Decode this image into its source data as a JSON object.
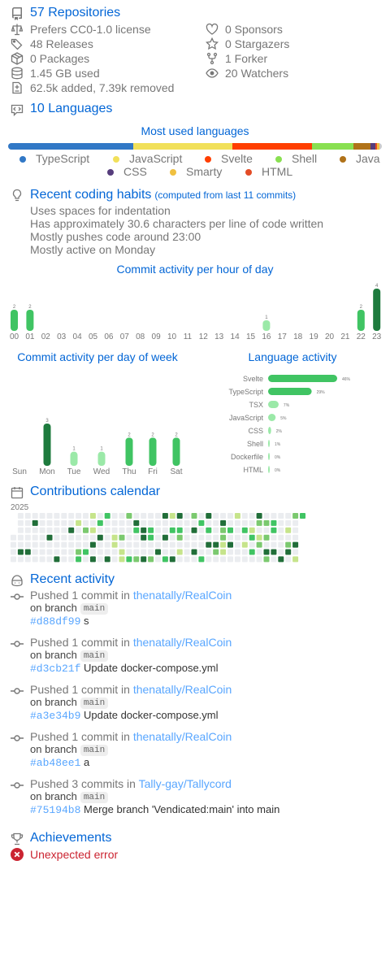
{
  "repos": {
    "title": "57 Repositories",
    "license": "Prefers CC0-1.0 license",
    "releases": "48 Releases",
    "packages": "0 Packages",
    "used": "1.45 GB used",
    "changes": "62.5k added, 7.39k removed",
    "sponsors": "0 Sponsors",
    "stargazers": "0 Stargazers",
    "forker": "1 Forker",
    "watchers": "20 Watchers"
  },
  "languages": {
    "title": "10 Languages",
    "chart_title": "Most used languages",
    "legend": [
      {
        "name": "TypeScript",
        "color": "#3178c6"
      },
      {
        "name": "JavaScript",
        "color": "#f1e05a"
      },
      {
        "name": "Svelte",
        "color": "#ff3e00"
      },
      {
        "name": "Shell",
        "color": "#89e051"
      },
      {
        "name": "Java",
        "color": "#b07219"
      },
      {
        "name": "CSS",
        "color": "#563d7c"
      },
      {
        "name": "Smarty",
        "color": "#f0c040"
      },
      {
        "name": "HTML",
        "color": "#e34c26"
      }
    ],
    "bar_shares": [
      33,
      26,
      21,
      11,
      4.5,
      1.2,
      0.6,
      0.6,
      0.6
    ],
    "bar_colors": [
      "#3178c6",
      "#f1e05a",
      "#ff3e00",
      "#89e051",
      "#b07219",
      "#563d7c",
      "#e34c26",
      "#f0c040",
      "#cccccc"
    ]
  },
  "habits": {
    "title": "Recent coding habits",
    "computed": "(computed from last 11 commits)",
    "lines": [
      "Uses spaces for indentation",
      "Has approximately 30.6 characters per line of code written",
      "Mostly pushes code around 23:00",
      "Mostly active on Monday"
    ]
  },
  "chart_data": [
    {
      "type": "bar",
      "title": "Commit activity per hour of day",
      "categories": [
        "00",
        "01",
        "02",
        "03",
        "04",
        "05",
        "06",
        "07",
        "08",
        "09",
        "10",
        "11",
        "12",
        "13",
        "14",
        "15",
        "16",
        "17",
        "18",
        "19",
        "20",
        "21",
        "22",
        "23"
      ],
      "values": [
        2,
        2,
        0,
        0,
        0,
        0,
        0,
        0,
        0,
        0,
        0,
        0,
        0,
        0,
        0,
        0,
        1,
        0,
        0,
        0,
        0,
        0,
        2,
        4
      ],
      "ylim": [
        0,
        4
      ]
    },
    {
      "type": "bar",
      "title": "Commit activity per day of week",
      "categories": [
        "Sun",
        "Mon",
        "Tue",
        "Wed",
        "Thu",
        "Fri",
        "Sat"
      ],
      "values": [
        0,
        3,
        1,
        1,
        2,
        2,
        2
      ],
      "ylim": [
        0,
        3
      ]
    },
    {
      "type": "bar",
      "title": "Language activity",
      "orientation": "horizontal",
      "categories": [
        "Svelte",
        "TypeScript",
        "TSX",
        "JavaScript",
        "CSS",
        "Shell",
        "Dockerfile",
        "HTML"
      ],
      "values": [
        46,
        29,
        7,
        5,
        2,
        1,
        0,
        0
      ],
      "value_labels": [
        "46%",
        "29%",
        "7%",
        "5%",
        "2%",
        "1%",
        "0%",
        "0%"
      ],
      "xlim": [
        0,
        46
      ]
    }
  ],
  "calendar": {
    "title": "Contributions calendar",
    "year": "2025"
  },
  "activity": {
    "title": "Recent activity",
    "items": [
      {
        "text": "Pushed 1 commit in ",
        "repo": "thenatally/RealCoin",
        "branch_label": "on branch",
        "branch": "main",
        "sha": "#d88df99",
        "msg": "s"
      },
      {
        "text": "Pushed 1 commit in ",
        "repo": "thenatally/RealCoin",
        "branch_label": "on branch",
        "branch": "main",
        "sha": "#d3cb21f",
        "msg": "Update docker-compose.yml"
      },
      {
        "text": "Pushed 1 commit in ",
        "repo": "thenatally/RealCoin",
        "branch_label": "on branch",
        "branch": "main",
        "sha": "#a3e34b9",
        "msg": "Update docker-compose.yml"
      },
      {
        "text": "Pushed 1 commit in ",
        "repo": "thenatally/RealCoin",
        "branch_label": "on branch",
        "branch": "main",
        "sha": "#ab48ee1",
        "msg": "a"
      },
      {
        "text": "Pushed 3 commits in ",
        "repo": "Tally-gay/Tallycord",
        "branch_label": "on branch",
        "branch": "main",
        "sha": "#75194b8",
        "msg": "Merge branch 'Vendicated:main' into main"
      }
    ]
  },
  "achievements": {
    "title": "Achievements",
    "error": "Unexpected error"
  },
  "icons": {
    "repo": "repo-icon",
    "law": "law-icon",
    "tag": "tag-icon",
    "package": "package-icon",
    "database": "database-icon",
    "diff": "diff-icon",
    "heart": "heart-icon",
    "star": "star-icon",
    "fork": "fork-icon",
    "eye": "eye-icon",
    "code": "code-square-icon",
    "bulb": "light-bulb-icon",
    "calendar": "calendar-icon",
    "copilot": "copilot-icon",
    "commit": "commit-icon",
    "trophy": "trophy-icon",
    "x": "x-circle-icon"
  }
}
